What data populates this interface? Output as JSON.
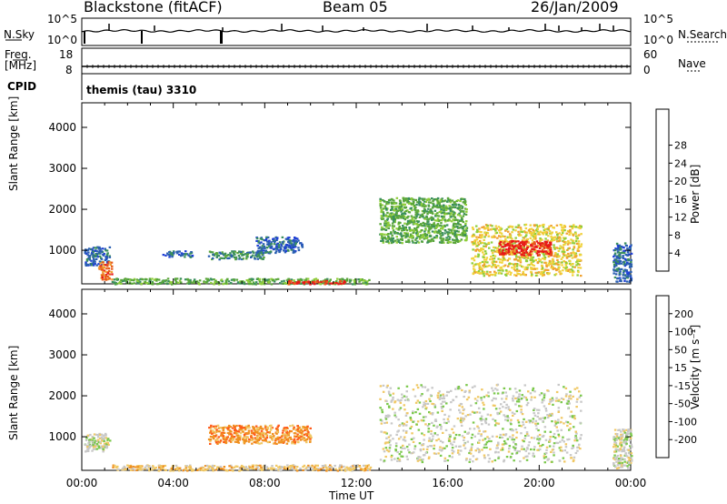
{
  "header": {
    "station": "Blackstone (fitACF)",
    "beam": "Beam 05",
    "date": "26/Jan/2009"
  },
  "status_panels": {
    "nsky_label": "N.Sky",
    "nsearch_label": "N.Search",
    "noise_ticks": [
      "10^5",
      "10^0"
    ],
    "freq_label": "Freq.",
    "freq_unit": "[MHz]",
    "freq_ticks": [
      "18",
      "8"
    ],
    "nave_label": "Nave",
    "nave_ticks": [
      "60",
      "0"
    ],
    "cpid_label": "CPID",
    "cpid_value": "themis (tau) 3310"
  },
  "colors": {
    "power": [
      "#1f3fd6",
      "#2a5fb0",
      "#3a8f5c",
      "#5aa63a",
      "#8fce3a",
      "#f0d23a",
      "#f0a030",
      "#e85a18",
      "#e81818"
    ],
    "velocity": [
      "#0a1a9a",
      "#1f5fc0",
      "#2a9a6a",
      "#7ac84a",
      "#c8c8c8",
      "#f0c864",
      "#f09020",
      "#ff5a1a",
      "#e81818"
    ]
  },
  "chart_data": [
    {
      "type": "heatmap",
      "name": "power",
      "ylabel": "Slant Range [km]",
      "y_ticks": [
        1000,
        2000,
        3000,
        4000
      ],
      "ylim": [
        180,
        4600
      ],
      "colorbar": {
        "label": "Power [dB]",
        "ticks": [
          "4",
          "8",
          "12",
          "16",
          "20",
          "24",
          "28"
        ]
      },
      "clusters": [
        {
          "x0": 0.1,
          "x1": 1.2,
          "y0": 650,
          "y1": 1100,
          "level": 1
        },
        {
          "x0": 0.7,
          "x1": 1.3,
          "y0": 300,
          "y1": 750,
          "level": 7
        },
        {
          "x0": 1.3,
          "x1": 12.6,
          "y0": 190,
          "y1": 330,
          "level": 3
        },
        {
          "x0": 9.0,
          "x1": 11.5,
          "y0": 190,
          "y1": 280,
          "level": 8
        },
        {
          "x0": 3.5,
          "x1": 4.8,
          "y0": 850,
          "y1": 1000,
          "level": 1
        },
        {
          "x0": 5.5,
          "x1": 8.0,
          "y0": 800,
          "y1": 1000,
          "level": 2
        },
        {
          "x0": 7.6,
          "x1": 9.6,
          "y0": 950,
          "y1": 1350,
          "level": 1
        },
        {
          "x0": 13.0,
          "x1": 16.8,
          "y0": 1200,
          "y1": 2300,
          "level": 3
        },
        {
          "x0": 17.0,
          "x1": 21.8,
          "y0": 400,
          "y1": 1650,
          "level": 5
        },
        {
          "x0": 18.2,
          "x1": 20.5,
          "y0": 900,
          "y1": 1250,
          "level": 8
        },
        {
          "x0": 23.2,
          "x1": 24.0,
          "y0": 250,
          "y1": 1200,
          "level": 1
        }
      ]
    },
    {
      "type": "heatmap",
      "name": "velocity",
      "xlabel": "Time UT",
      "ylabel": "Slant Range [km]",
      "x_ticks": [
        "00:00",
        "04:00",
        "08:00",
        "12:00",
        "16:00",
        "20:00",
        "00:00"
      ],
      "xlim": [
        0,
        24
      ],
      "y_ticks": [
        1000,
        2000,
        3000,
        4000
      ],
      "ylim": [
        180,
        4600
      ],
      "colorbar": {
        "label": "Velocity [m s⁻¹]",
        "ticks": [
          "200",
          "100",
          "50",
          "15",
          "-15",
          "-50",
          "-100",
          "-200"
        ]
      },
      "clusters": [
        {
          "x0": 0.1,
          "x1": 1.2,
          "y0": 650,
          "y1": 1100,
          "level": 4
        },
        {
          "x0": 1.3,
          "x1": 12.6,
          "y0": 190,
          "y1": 330,
          "level": 5
        },
        {
          "x0": 5.5,
          "x1": 10.0,
          "y0": 850,
          "y1": 1300,
          "level": 6
        },
        {
          "x0": 13.0,
          "x1": 21.8,
          "y0": 400,
          "y1": 2300,
          "level": 4
        },
        {
          "x0": 23.2,
          "x1": 24.0,
          "y0": 250,
          "y1": 1200,
          "level": 4
        }
      ]
    }
  ]
}
